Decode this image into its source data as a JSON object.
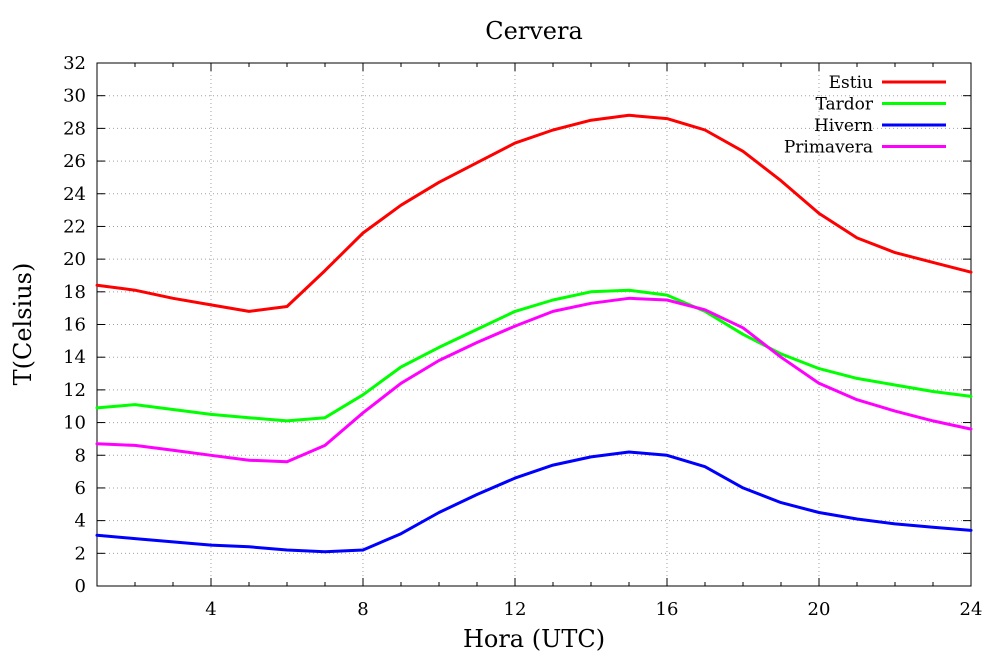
{
  "chart_data": {
    "type": "line",
    "title": "Cervera",
    "xlabel": "Hora (UTC)",
    "ylabel": "T(Celsius)",
    "xlim": [
      1,
      24
    ],
    "ylim": [
      0,
      32
    ],
    "x_ticks": [
      4,
      8,
      12,
      16,
      20,
      24
    ],
    "x_tick_labels": [
      "4",
      "8",
      "12",
      "16",
      "20",
      "24"
    ],
    "y_ticks": [
      0,
      2,
      4,
      6,
      8,
      10,
      12,
      14,
      16,
      18,
      20,
      22,
      24,
      26,
      28,
      30,
      32
    ],
    "y_tick_labels": [
      "0",
      "2",
      "4",
      "6",
      "8",
      "10",
      "12",
      "14",
      "16",
      "18",
      "20",
      "22",
      "24",
      "26",
      "28",
      "30",
      "32"
    ],
    "grid": true,
    "legend_position": "top-right",
    "x": [
      1,
      2,
      3,
      4,
      5,
      6,
      7,
      8,
      9,
      10,
      11,
      12,
      13,
      14,
      15,
      16,
      17,
      18,
      19,
      20,
      21,
      22,
      23,
      24
    ],
    "series": [
      {
        "name": "Estiu",
        "color": "#ff0000",
        "values": [
          18.4,
          18.1,
          17.6,
          17.2,
          16.8,
          17.1,
          19.3,
          21.6,
          23.3,
          24.7,
          25.9,
          27.1,
          27.9,
          28.5,
          28.8,
          28.6,
          27.9,
          26.6,
          24.8,
          22.8,
          21.3,
          20.4,
          19.8,
          19.2
        ]
      },
      {
        "name": "Tardor",
        "color": "#00ff00",
        "values": [
          10.9,
          11.1,
          10.8,
          10.5,
          10.3,
          10.1,
          10.3,
          11.7,
          13.4,
          14.6,
          15.7,
          16.8,
          17.5,
          18.0,
          18.1,
          17.8,
          16.8,
          15.4,
          14.2,
          13.3,
          12.7,
          12.3,
          11.9,
          11.6
        ]
      },
      {
        "name": "Hivern",
        "color": "#0000ff",
        "values": [
          3.1,
          2.9,
          2.7,
          2.5,
          2.4,
          2.2,
          2.1,
          2.2,
          3.2,
          4.5,
          5.6,
          6.6,
          7.4,
          7.9,
          8.2,
          8.0,
          7.3,
          6.0,
          5.1,
          4.5,
          4.1,
          3.8,
          3.6,
          3.4
        ]
      },
      {
        "name": "Primavera",
        "color": "#ff00ff",
        "values": [
          8.7,
          8.6,
          8.3,
          8.0,
          7.7,
          7.6,
          8.6,
          10.6,
          12.4,
          13.8,
          14.9,
          15.9,
          16.8,
          17.3,
          17.6,
          17.5,
          16.9,
          15.8,
          14.0,
          12.4,
          11.4,
          10.7,
          10.1,
          9.6
        ]
      }
    ]
  }
}
